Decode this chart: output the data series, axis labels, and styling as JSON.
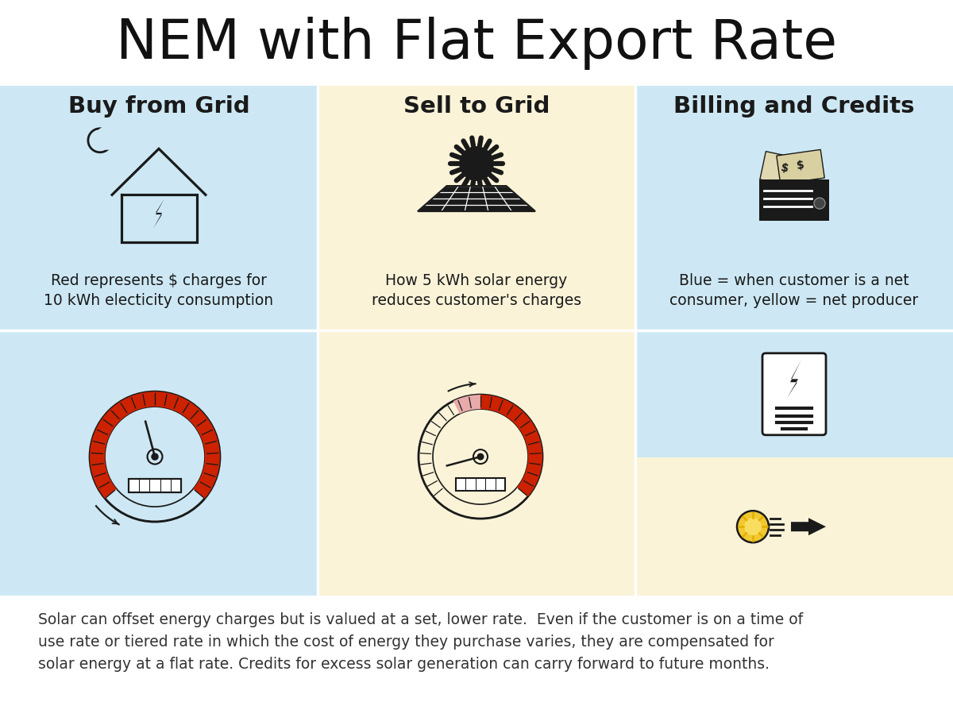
{
  "title": "NEM with Flat Export Rate",
  "title_fontsize": 50,
  "bg_color": "#ffffff",
  "col1_bg": "#cde8f4",
  "col2_bg": "#faf3d8",
  "col3_top_bg": "#cde8f4",
  "col3_bot_bg": "#faf3d8",
  "col_headers": [
    "Buy from Grid",
    "Sell to Grid",
    "Billing and Credits"
  ],
  "col_header_fontsize": 21,
  "col1_desc": "Red represents $ charges for\n10 kWh electicity consumption",
  "col2_desc": "How 5 kWh solar energy\nreduces customer's charges",
  "col3_desc": "Blue = when customer is a net\nconsumer, yellow = net producer",
  "desc_fontsize": 13.5,
  "footer_text": "Solar can offset energy charges but is valued at a set, lower rate.  Even if the customer is on a time of\nuse rate or tiered rate in which the cost of energy they purchase varies, they are compensated for\nsolar energy at a flat rate. Credits for excess solar generation can carry forward to future months.",
  "footer_fontsize": 13.5,
  "dark_color": "#1a1a1a",
  "red_color": "#cc2200",
  "pink_color": "#e8aaaa"
}
